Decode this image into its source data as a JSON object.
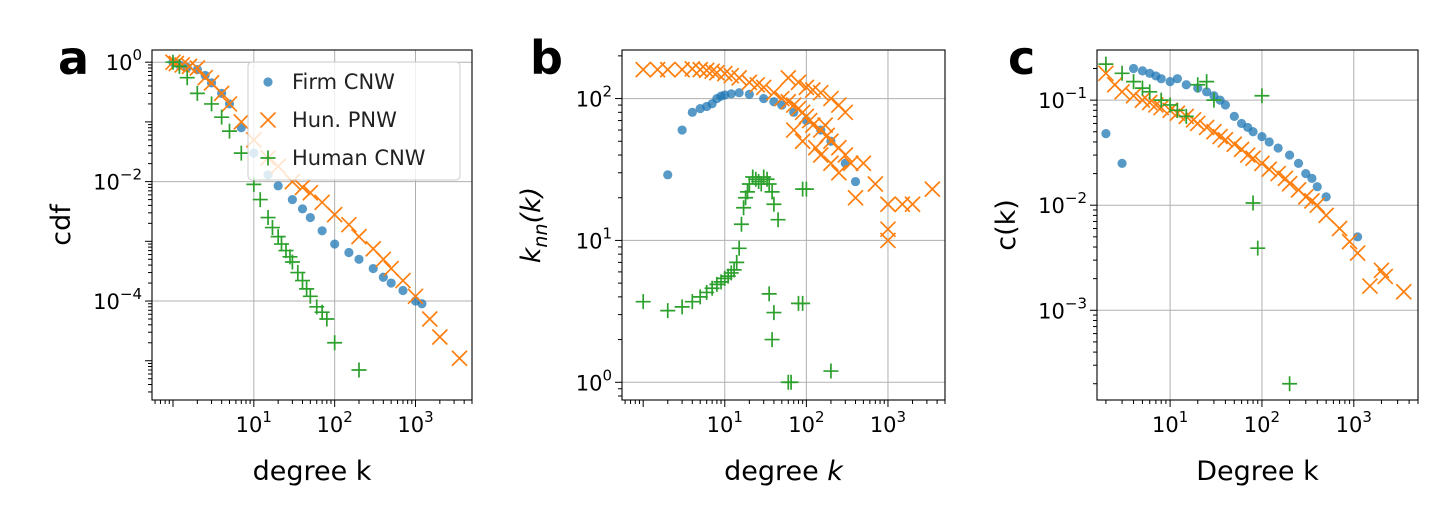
{
  "colors": {
    "firm": "#1f77b4",
    "hun": "#ff7f0e",
    "human": "#2ca02c"
  },
  "chart_data": [
    {
      "panel": "a",
      "type": "scatter",
      "xscale": "log",
      "yscale": "log",
      "xlim": [
        0.55,
        5000
      ],
      "ylim": [
        2.2e-06,
        1.6
      ],
      "xlabel": "degree k",
      "ylabel": "cdf",
      "xticks": [
        {
          "value": 10,
          "base": "10",
          "exp": "1"
        },
        {
          "value": 100,
          "base": "10",
          "exp": "2"
        },
        {
          "value": 1000,
          "base": "10",
          "exp": "3"
        }
      ],
      "yticks": [
        {
          "value": 1,
          "base": "10",
          "exp": "0"
        },
        {
          "value": 0.01,
          "base": "10",
          "exp": "−2"
        },
        {
          "value": 0.0001,
          "base": "10",
          "exp": "−4"
        }
      ],
      "grid": true,
      "legend": {
        "position": "top-right",
        "entries": [
          "Firm CNW",
          "Hun. PNW",
          "Human CNW"
        ]
      },
      "series": [
        {
          "name": "Firm CNW",
          "marker": "dot",
          "color": "#1f77b4",
          "x": [
            1,
            1.2,
            1.5,
            2,
            2.5,
            3,
            4,
            5,
            7,
            10,
            15,
            20,
            30,
            40,
            50,
            70,
            100,
            150,
            200,
            300,
            400,
            500,
            700,
            1000,
            1200
          ],
          "y": [
            1,
            0.9,
            0.82,
            0.75,
            0.6,
            0.45,
            0.3,
            0.2,
            0.08,
            0.03,
            0.013,
            0.0085,
            0.005,
            0.0035,
            0.0025,
            0.0015,
            0.0009,
            0.00065,
            0.0005,
            0.00035,
            0.00025,
            0.0002,
            0.00015,
            0.0001,
            9e-05
          ]
        },
        {
          "name": "Hun. PNW",
          "marker": "x",
          "color": "#ff7f0e",
          "x": [
            1,
            1.1,
            1.3,
            1.6,
            2,
            2.5,
            3,
            4,
            5,
            7,
            10,
            15,
            20,
            30,
            40,
            50,
            70,
            100,
            150,
            200,
            300,
            400,
            500,
            700,
            1000,
            1500,
            2000,
            3500
          ],
          "y": [
            1,
            0.95,
            0.9,
            0.85,
            0.8,
            0.55,
            0.45,
            0.3,
            0.2,
            0.1,
            0.05,
            0.025,
            0.018,
            0.01,
            0.008,
            0.0065,
            0.0045,
            0.0028,
            0.0019,
            0.0012,
            0.00075,
            0.0005,
            0.00035,
            0.00022,
            0.00012,
            5e-05,
            2.5e-05,
            1.1e-05
          ]
        },
        {
          "name": "Human CNW",
          "marker": "plus",
          "color": "#2ca02c",
          "x": [
            1,
            1.2,
            1.5,
            2,
            3,
            4,
            5,
            7,
            10,
            12,
            15,
            17,
            20,
            22,
            25,
            28,
            30,
            35,
            40,
            45,
            50,
            60,
            70,
            80,
            100,
            200
          ],
          "y": [
            1,
            0.85,
            0.55,
            0.3,
            0.2,
            0.12,
            0.07,
            0.03,
            0.009,
            0.005,
            0.0025,
            0.0017,
            0.0012,
            0.0009,
            0.0007,
            0.00055,
            0.00045,
            0.0003,
            0.00022,
            0.00016,
            0.00012,
            8e-05,
            6.5e-05,
            5e-05,
            2e-05,
            7e-06
          ]
        }
      ]
    },
    {
      "panel": "b",
      "type": "scatter",
      "xscale": "log",
      "yscale": "log",
      "xlim": [
        0.55,
        5000
      ],
      "ylim": [
        0.75,
        220
      ],
      "xlabel_parts": [
        "degree ",
        "k"
      ],
      "ylabel_parts": [
        "k",
        "nn",
        "(k)"
      ],
      "xticks": [
        {
          "value": 10,
          "base": "10",
          "exp": "1"
        },
        {
          "value": 100,
          "base": "10",
          "exp": "2"
        },
        {
          "value": 1000,
          "base": "10",
          "exp": "3"
        }
      ],
      "yticks": [
        {
          "value": 1,
          "base": "10",
          "exp": "0"
        },
        {
          "value": 10,
          "base": "10",
          "exp": "1"
        },
        {
          "value": 100,
          "base": "10",
          "exp": "2"
        }
      ],
      "grid": true,
      "series": [
        {
          "name": "Firm CNW",
          "marker": "dot",
          "color": "#1f77b4",
          "x": [
            2,
            3,
            4,
            5,
            6,
            7,
            8,
            9,
            10,
            12,
            15,
            20,
            30,
            40,
            50,
            70,
            100,
            150,
            200,
            300,
            400
          ],
          "y": [
            29,
            60,
            80,
            85,
            88,
            92,
            100,
            104,
            106,
            108,
            110,
            107,
            100,
            95,
            90,
            80,
            70,
            60,
            50,
            35,
            26
          ]
        },
        {
          "name": "Hun. PNW",
          "marker": "x",
          "color": "#ff7f0e",
          "x": [
            1,
            1.5,
            2,
            3,
            4,
            5,
            6,
            7,
            8,
            10,
            12,
            15,
            20,
            25,
            30,
            40,
            50,
            60,
            70,
            80,
            90,
            100,
            110,
            120,
            150,
            180,
            200,
            250,
            300,
            350,
            400,
            500,
            700,
            1000,
            1000,
            1000,
            1500,
            2000,
            3500,
            60,
            80,
            100,
            120,
            150,
            200,
            250,
            300,
            150,
            200,
            250,
            70,
            90,
            130,
            170
          ],
          "y": [
            160,
            160,
            160,
            160,
            162,
            160,
            158,
            156,
            152,
            150,
            145,
            140,
            130,
            125,
            120,
            110,
            100,
            95,
            90,
            85,
            80,
            75,
            70,
            65,
            60,
            55,
            50,
            45,
            40,
            35,
            20,
            35,
            25,
            18,
            12,
            10,
            18,
            18,
            23,
            140,
            130,
            120,
            115,
            110,
            100,
            90,
            80,
            40,
            35,
            30,
            60,
            50,
            45,
            65
          ]
        },
        {
          "name": "Human CNW",
          "marker": "plus",
          "color": "#2ca02c",
          "x": [
            1,
            2,
            3,
            4,
            5,
            6,
            7,
            8,
            9,
            10,
            11,
            12,
            13,
            14,
            15,
            16,
            17,
            18,
            19,
            20,
            22,
            24,
            26,
            28,
            30,
            33,
            35,
            38,
            40,
            45,
            35,
            40,
            38,
            60,
            65,
            80,
            90,
            90,
            100,
            200
          ],
          "y": [
            3.7,
            3.2,
            3.4,
            3.7,
            4,
            4.3,
            4.6,
            4.9,
            5.1,
            5.4,
            5.6,
            5.9,
            6.2,
            7,
            8.8,
            13,
            17,
            20,
            22,
            25,
            28,
            27,
            26,
            25,
            28,
            27,
            25,
            22,
            18,
            14,
            4.2,
            3.1,
            2,
            1,
            1,
            3.6,
            3.6,
            23,
            23,
            1.2
          ]
        }
      ]
    },
    {
      "panel": "c",
      "type": "scatter",
      "xscale": "log",
      "yscale": "log",
      "xlim": [
        1.6,
        5000
      ],
      "ylim": [
        0.00014,
        0.3
      ],
      "xlabel": "Degree k",
      "ylabel": "c(k)",
      "xticks": [
        {
          "value": 10,
          "base": "10",
          "exp": "1"
        },
        {
          "value": 100,
          "base": "10",
          "exp": "2"
        },
        {
          "value": 1000,
          "base": "10",
          "exp": "3"
        }
      ],
      "yticks": [
        {
          "value": 0.1,
          "base": "10",
          "exp": "−1"
        },
        {
          "value": 0.01,
          "base": "10",
          "exp": "−2"
        },
        {
          "value": 0.001,
          "base": "10",
          "exp": "−3"
        }
      ],
      "grid": true,
      "series": [
        {
          "name": "Firm CNW",
          "marker": "dot",
          "color": "#1f77b4",
          "x": [
            2,
            3,
            4,
            5,
            6,
            7,
            8,
            10,
            12,
            15,
            20,
            25,
            30,
            35,
            40,
            50,
            60,
            70,
            80,
            100,
            120,
            150,
            200,
            250,
            300,
            350,
            400,
            500,
            1100
          ],
          "y": [
            0.048,
            0.025,
            0.2,
            0.19,
            0.18,
            0.17,
            0.16,
            0.15,
            0.16,
            0.14,
            0.13,
            0.12,
            0.11,
            0.1,
            0.09,
            0.07,
            0.06,
            0.055,
            0.05,
            0.045,
            0.04,
            0.035,
            0.03,
            0.025,
            0.02,
            0.018,
            0.015,
            0.012,
            0.005
          ]
        },
        {
          "name": "Hun. PNW",
          "marker": "x",
          "color": "#ff7f0e",
          "x": [
            2,
            2.5,
            3,
            4,
            5,
            6,
            7,
            8,
            10,
            12,
            15,
            18,
            20,
            25,
            30,
            35,
            40,
            50,
            60,
            70,
            80,
            100,
            120,
            150,
            180,
            200,
            250,
            300,
            350,
            400,
            500,
            700,
            900,
            1100,
            1500,
            2000,
            2200,
            3500
          ],
          "y": [
            0.18,
            0.14,
            0.12,
            0.11,
            0.1,
            0.095,
            0.09,
            0.085,
            0.08,
            0.075,
            0.07,
            0.065,
            0.06,
            0.055,
            0.05,
            0.045,
            0.042,
            0.038,
            0.034,
            0.03,
            0.028,
            0.025,
            0.022,
            0.02,
            0.018,
            0.016,
            0.014,
            0.012,
            0.011,
            0.01,
            0.008,
            0.006,
            0.0045,
            0.0035,
            0.0017,
            0.0024,
            0.0021,
            0.0015
          ]
        },
        {
          "name": "Human CNW",
          "marker": "plus",
          "color": "#2ca02c",
          "x": [
            2,
            3,
            4,
            5,
            6,
            8,
            10,
            12,
            15,
            20,
            25,
            30,
            80,
            90,
            100,
            200
          ],
          "y": [
            0.22,
            0.18,
            0.15,
            0.13,
            0.12,
            0.1,
            0.09,
            0.08,
            0.07,
            0.14,
            0.15,
            0.1,
            0.0105,
            0.0039,
            0.11,
            0.0002
          ]
        }
      ]
    }
  ]
}
